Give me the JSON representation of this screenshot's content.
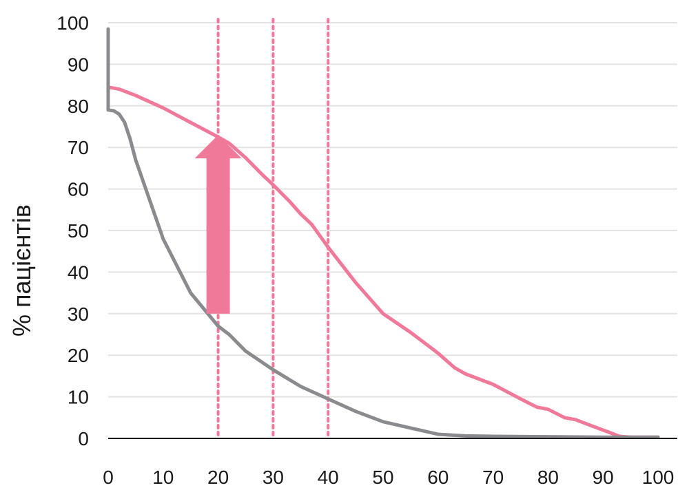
{
  "chart_data": {
    "type": "line",
    "xlabel": "",
    "ylabel": "% пацієнтів",
    "xlim": [
      0,
      100
    ],
    "ylim": [
      0,
      100
    ],
    "x_ticks": [
      0,
      10,
      20,
      30,
      40,
      50,
      60,
      70,
      80,
      90,
      100
    ],
    "y_ticks": [
      0,
      10,
      20,
      30,
      40,
      50,
      60,
      70,
      80,
      90,
      100
    ],
    "grid": true,
    "legend": "none",
    "vertical_reference_lines": [
      20,
      30,
      40
    ],
    "arrow": {
      "x": 20,
      "from": 30,
      "to": 73
    },
    "colors": {
      "pink": "#f07898",
      "gray": "#8a8b8e",
      "grid": "#e3e3e3",
      "axis": "#1a1a1a",
      "arrow": "#f07898"
    },
    "series": [
      {
        "color": "#f07898",
        "points": [
          [
            0,
            84.5
          ],
          [
            2,
            84
          ],
          [
            5,
            82.5
          ],
          [
            10,
            79.5
          ],
          [
            15,
            76
          ],
          [
            20,
            72.5
          ],
          [
            22,
            71
          ],
          [
            25,
            67.5
          ],
          [
            28,
            63.5
          ],
          [
            30,
            61
          ],
          [
            33,
            57
          ],
          [
            35,
            54
          ],
          [
            37,
            51.5
          ],
          [
            40,
            46
          ],
          [
            45,
            37.5
          ],
          [
            50,
            30
          ],
          [
            55,
            25.5
          ],
          [
            60,
            20.5
          ],
          [
            63,
            17
          ],
          [
            65,
            15.5
          ],
          [
            70,
            13
          ],
          [
            75,
            9.5
          ],
          [
            78,
            7.5
          ],
          [
            80,
            7
          ],
          [
            83,
            5
          ],
          [
            85,
            4.5
          ],
          [
            88,
            3
          ],
          [
            91,
            1.5
          ],
          [
            93,
            0.5
          ],
          [
            95,
            0.3
          ],
          [
            100,
            0.3
          ]
        ]
      },
      {
        "color": "#8a8b8e",
        "points": [
          [
            0,
            98.5
          ],
          [
            0,
            79
          ],
          [
            1,
            78.8
          ],
          [
            2,
            78
          ],
          [
            3,
            76
          ],
          [
            4,
            72
          ],
          [
            5,
            67
          ],
          [
            10,
            48
          ],
          [
            15,
            35
          ],
          [
            20,
            27
          ],
          [
            22,
            25
          ],
          [
            25,
            21
          ],
          [
            30,
            16.5
          ],
          [
            35,
            12.5
          ],
          [
            40,
            9.5
          ],
          [
            45,
            6.5
          ],
          [
            50,
            4
          ],
          [
            55,
            2.5
          ],
          [
            60,
            1
          ],
          [
            65,
            0.6
          ],
          [
            70,
            0.5
          ],
          [
            80,
            0.4
          ],
          [
            90,
            0.3
          ],
          [
            100,
            0.3
          ]
        ]
      }
    ]
  }
}
